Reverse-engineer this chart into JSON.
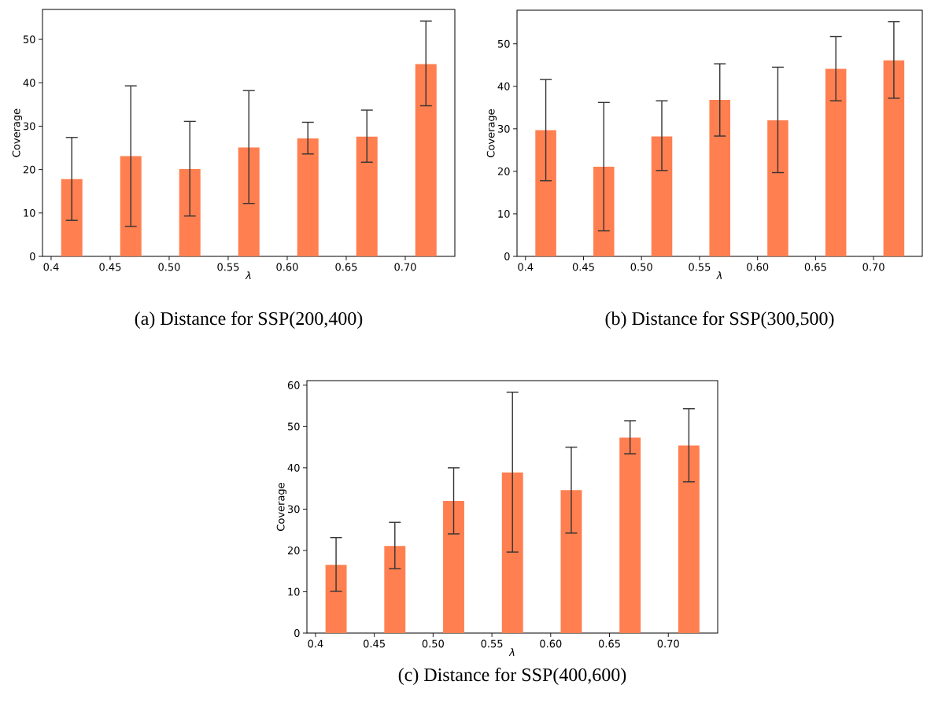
{
  "chart_data": [
    {
      "type": "bar",
      "title": "(a) Distance for SSP(200,400)",
      "xlabel": "λ",
      "ylabel": "Coverage",
      "color": "#ff7f50",
      "x": [
        0.4175,
        0.4675,
        0.5175,
        0.5675,
        0.6175,
        0.6675,
        0.7175
      ],
      "values": [
        17.8,
        23.1,
        20.1,
        25.1,
        27.2,
        27.6,
        44.3
      ],
      "errors": [
        [
          8.3,
          27.4
        ],
        [
          6.9,
          39.3
        ],
        [
          9.3,
          31.1
        ],
        [
          12.2,
          38.2
        ],
        [
          23.6,
          30.9
        ],
        [
          21.7,
          33.7
        ],
        [
          34.7,
          54.2
        ]
      ],
      "xlim": [
        0.3927,
        0.742
      ],
      "ylim": [
        0,
        56.9
      ],
      "xticks": [
        0.4,
        0.45,
        {
          "value": 0.5,
          "label": "0.50"
        },
        0.55,
        {
          "value": 0.6,
          "label": "0.60"
        },
        0.65,
        {
          "value": 0.7,
          "label": "0.70"
        }
      ],
      "yticks": [
        0,
        10,
        20,
        30,
        40,
        50
      ]
    },
    {
      "type": "bar",
      "title": "(b) Distance for SSP(300,500)",
      "xlabel": "λ",
      "ylabel": "Coverage",
      "color": "#ff7f50",
      "x": [
        0.4175,
        0.4675,
        0.5175,
        0.5675,
        0.6175,
        0.6675,
        0.7175
      ],
      "values": [
        29.7,
        21.1,
        28.2,
        36.8,
        32.0,
        44.1,
        46.1
      ],
      "errors": [
        [
          17.8,
          41.6
        ],
        [
          6.0,
          36.2
        ],
        [
          20.2,
          36.6
        ],
        [
          28.3,
          45.3
        ],
        [
          19.7,
          44.5
        ],
        [
          36.6,
          51.7
        ],
        [
          37.2,
          55.2
        ]
      ],
      "xlim": [
        0.3927,
        0.742
      ],
      "ylim": [
        0,
        57.9
      ],
      "xticks": [
        0.4,
        0.45,
        {
          "value": 0.5,
          "label": "0.50"
        },
        0.55,
        {
          "value": 0.6,
          "label": "0.60"
        },
        0.65,
        {
          "value": 0.7,
          "label": "0.70"
        }
      ],
      "yticks": [
        0,
        10,
        20,
        30,
        40,
        50
      ]
    },
    {
      "type": "bar",
      "title": "(c) Distance for SSP(400,600)",
      "xlabel": "λ",
      "ylabel": "Coverage",
      "color": "#ff7f50",
      "x": [
        0.4175,
        0.4675,
        0.5175,
        0.5675,
        0.6175,
        0.6675,
        0.7175
      ],
      "values": [
        16.5,
        21.1,
        32.0,
        38.9,
        34.6,
        47.3,
        45.4
      ],
      "errors": [
        [
          10.1,
          23.1
        ],
        [
          15.6,
          26.8
        ],
        [
          24.0,
          40.0
        ],
        [
          19.6,
          58.3
        ],
        [
          24.2,
          45.0
        ],
        [
          43.4,
          51.4
        ],
        [
          36.6,
          54.3
        ]
      ],
      "xlim": [
        0.3927,
        0.742
      ],
      "ylim": [
        0,
        61.1
      ],
      "xticks": [
        0.4,
        0.45,
        {
          "value": 0.5,
          "label": "0.50"
        },
        0.55,
        {
          "value": 0.6,
          "label": "0.60"
        },
        0.65,
        {
          "value": 0.7,
          "label": "0.70"
        }
      ],
      "yticks": [
        0,
        10,
        20,
        30,
        40,
        50,
        60
      ]
    }
  ]
}
